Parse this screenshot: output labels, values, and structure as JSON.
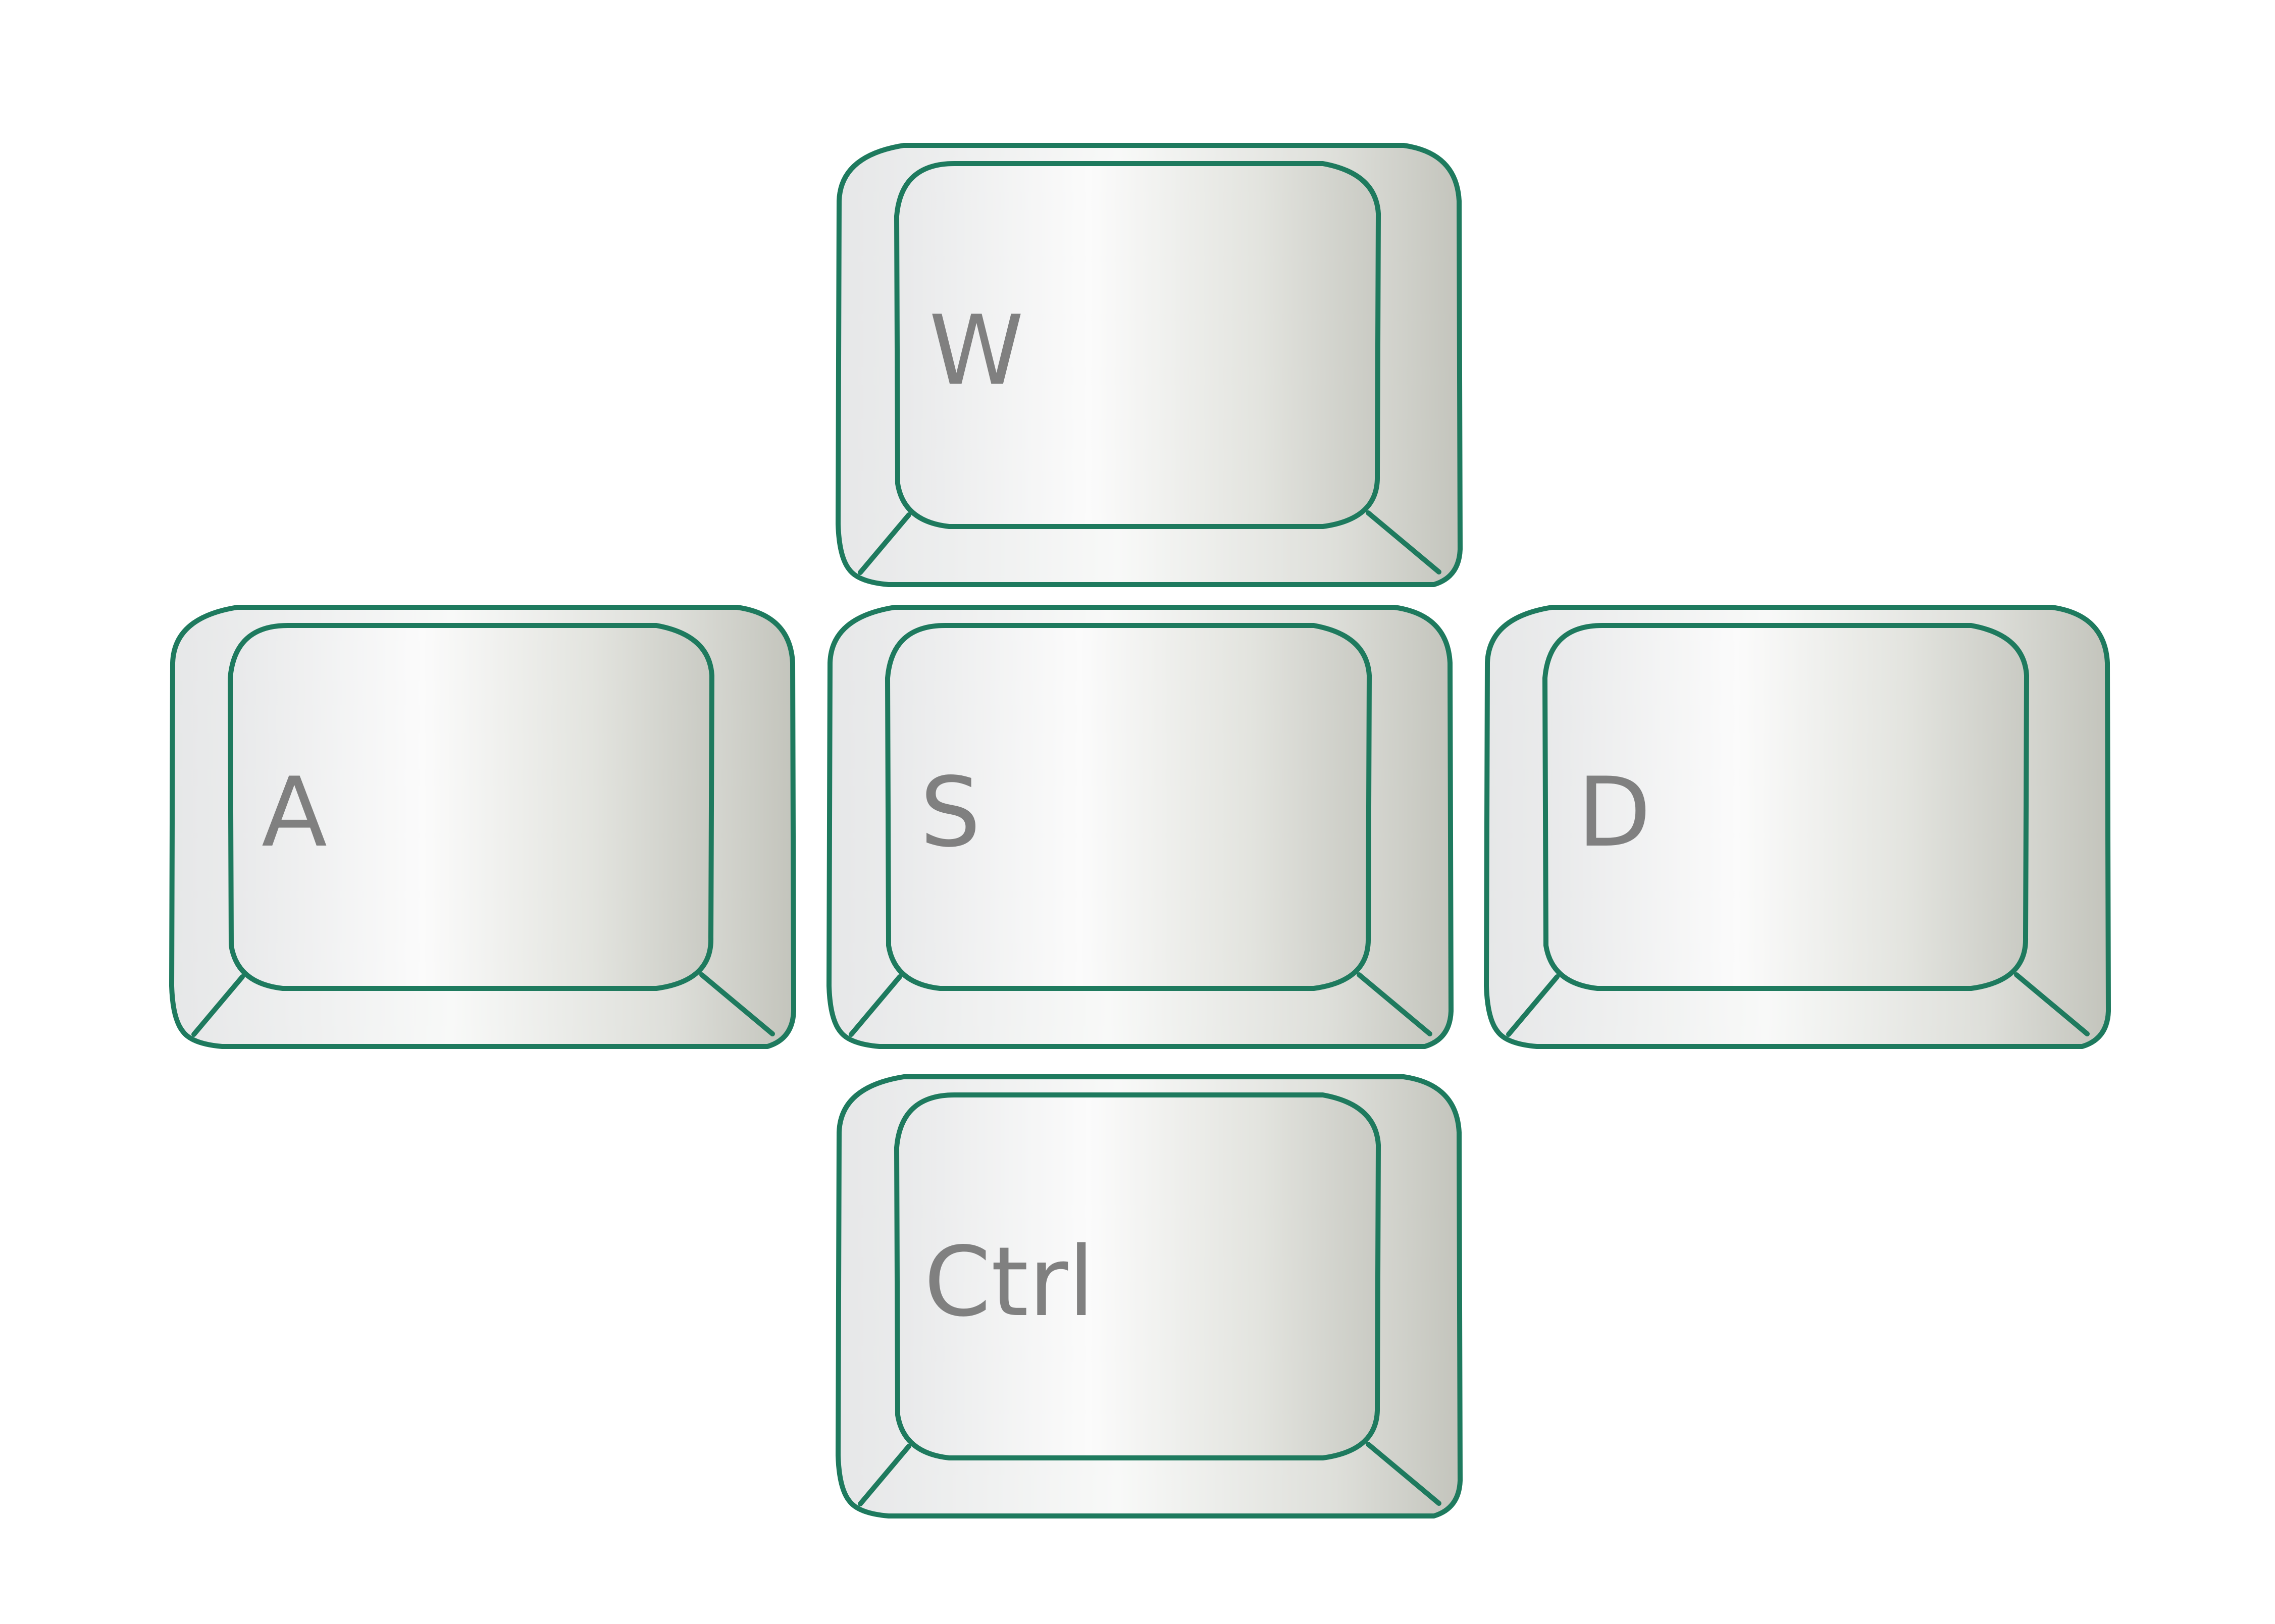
{
  "keys": [
    {
      "id": "w",
      "label": "W"
    },
    {
      "id": "a",
      "label": "A"
    },
    {
      "id": "s",
      "label": "S"
    },
    {
      "id": "d",
      "label": "D"
    },
    {
      "id": "ctrl",
      "label": "Ctrl"
    }
  ],
  "colors": {
    "outline": "#1e7a5e",
    "label": "#808080",
    "key_light": "#fafafa",
    "key_mid": "#e9eaea",
    "key_dark": "#c6c7bf",
    "background": "#ffffff"
  }
}
